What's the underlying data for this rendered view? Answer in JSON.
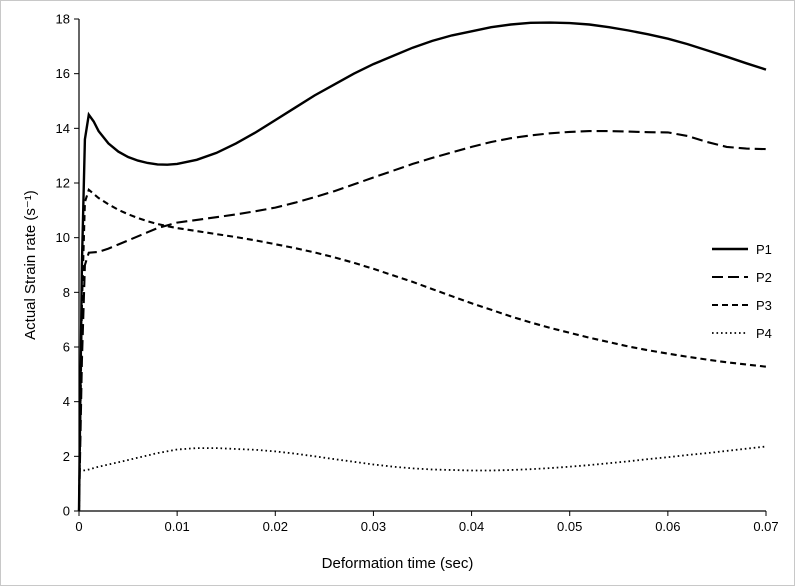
{
  "figure": {
    "background": "#ffffff",
    "border_color": "#c8c8c8"
  },
  "chart_data": {
    "type": "line",
    "title": "",
    "xlabel": "Deformation time (sec)",
    "ylabel": "Actual Strain rate (s⁻¹)",
    "xlim": [
      0,
      0.07
    ],
    "ylim": [
      0,
      18
    ],
    "grid": false,
    "legend_position": "middle-right",
    "axis_color": "#000000",
    "line_color": "#000000",
    "xtick_values": [
      0,
      0.01,
      0.02,
      0.03,
      0.04,
      0.05,
      0.06,
      0.07
    ],
    "xtick_labels": [
      "0",
      "0.01",
      "0.02",
      "0.03",
      "0.04",
      "0.05",
      "0.06",
      "0.07"
    ],
    "ytick_values": [
      0,
      2,
      4,
      6,
      8,
      10,
      12,
      14,
      16,
      18
    ],
    "ytick_labels": [
      "0",
      "2",
      "4",
      "6",
      "8",
      "10",
      "12",
      "14",
      "16",
      "18"
    ],
    "series": [
      {
        "name": "P1",
        "line_style": "solid",
        "x": [
          0,
          0.0003,
          0.0006,
          0.001,
          0.0015,
          0.002,
          0.003,
          0.004,
          0.005,
          0.006,
          0.007,
          0.008,
          0.009,
          0.01,
          0.012,
          0.014,
          0.016,
          0.018,
          0.02,
          0.022,
          0.024,
          0.026,
          0.028,
          0.03,
          0.032,
          0.034,
          0.036,
          0.038,
          0.04,
          0.042,
          0.044,
          0.046,
          0.048,
          0.05,
          0.052,
          0.054,
          0.056,
          0.058,
          0.06,
          0.062,
          0.064,
          0.066,
          0.068,
          0.07
        ],
        "y": [
          0,
          9.0,
          13.6,
          14.5,
          14.25,
          13.9,
          13.45,
          13.15,
          12.95,
          12.82,
          12.73,
          12.68,
          12.67,
          12.7,
          12.85,
          13.1,
          13.45,
          13.85,
          14.3,
          14.75,
          15.2,
          15.6,
          16.0,
          16.35,
          16.65,
          16.95,
          17.2,
          17.4,
          17.55,
          17.7,
          17.8,
          17.86,
          17.87,
          17.85,
          17.8,
          17.7,
          17.58,
          17.44,
          17.28,
          17.08,
          16.85,
          16.62,
          16.38,
          16.15
        ]
      },
      {
        "name": "P2",
        "line_style": "long-dash",
        "x": [
          0,
          0.0003,
          0.0006,
          0.001,
          0.002,
          0.003,
          0.004,
          0.005,
          0.006,
          0.007,
          0.008,
          0.009,
          0.01,
          0.012,
          0.014,
          0.016,
          0.018,
          0.02,
          0.022,
          0.024,
          0.026,
          0.028,
          0.03,
          0.032,
          0.034,
          0.036,
          0.038,
          0.04,
          0.042,
          0.044,
          0.046,
          0.048,
          0.05,
          0.052,
          0.054,
          0.056,
          0.058,
          0.06,
          0.062,
          0.064,
          0.066,
          0.068,
          0.07
        ],
        "y": [
          0,
          5.5,
          9.0,
          9.45,
          9.48,
          9.6,
          9.75,
          9.9,
          10.05,
          10.2,
          10.35,
          10.45,
          10.55,
          10.65,
          10.75,
          10.85,
          10.97,
          11.1,
          11.28,
          11.48,
          11.7,
          11.95,
          12.2,
          12.45,
          12.7,
          12.92,
          13.12,
          13.32,
          13.5,
          13.64,
          13.74,
          13.82,
          13.87,
          13.9,
          13.9,
          13.88,
          13.86,
          13.85,
          13.72,
          13.5,
          13.32,
          13.26,
          13.24
        ]
      },
      {
        "name": "P3",
        "line_style": "dash",
        "x": [
          0,
          0.0003,
          0.0006,
          0.001,
          0.002,
          0.003,
          0.004,
          0.005,
          0.006,
          0.007,
          0.008,
          0.009,
          0.01,
          0.012,
          0.014,
          0.016,
          0.018,
          0.02,
          0.022,
          0.024,
          0.026,
          0.028,
          0.03,
          0.032,
          0.034,
          0.036,
          0.038,
          0.04,
          0.042,
          0.044,
          0.046,
          0.048,
          0.05,
          0.052,
          0.054,
          0.056,
          0.058,
          0.06,
          0.062,
          0.064,
          0.066,
          0.068,
          0.07
        ],
        "y": [
          0,
          7.5,
          11.3,
          11.75,
          11.45,
          11.22,
          11.02,
          10.86,
          10.72,
          10.6,
          10.5,
          10.42,
          10.35,
          10.24,
          10.13,
          10.02,
          9.9,
          9.76,
          9.62,
          9.46,
          9.28,
          9.08,
          8.86,
          8.62,
          8.38,
          8.12,
          7.86,
          7.6,
          7.36,
          7.12,
          6.9,
          6.7,
          6.52,
          6.34,
          6.18,
          6.02,
          5.88,
          5.76,
          5.64,
          5.54,
          5.44,
          5.36,
          5.28
        ]
      },
      {
        "name": "P4",
        "line_style": "dot",
        "x": [
          0,
          0.001,
          0.002,
          0.004,
          0.006,
          0.008,
          0.01,
          0.012,
          0.014,
          0.016,
          0.018,
          0.02,
          0.022,
          0.024,
          0.026,
          0.028,
          0.03,
          0.032,
          0.034,
          0.036,
          0.038,
          0.04,
          0.042,
          0.044,
          0.046,
          0.048,
          0.05,
          0.052,
          0.054,
          0.056,
          0.058,
          0.06,
          0.062,
          0.064,
          0.066,
          0.068,
          0.07
        ],
        "y": [
          1.45,
          1.52,
          1.62,
          1.78,
          1.95,
          2.12,
          2.25,
          2.3,
          2.3,
          2.27,
          2.24,
          2.18,
          2.1,
          2.0,
          1.9,
          1.8,
          1.7,
          1.62,
          1.56,
          1.52,
          1.5,
          1.48,
          1.48,
          1.5,
          1.53,
          1.57,
          1.62,
          1.68,
          1.75,
          1.82,
          1.9,
          1.97,
          2.05,
          2.12,
          2.2,
          2.28,
          2.36
        ]
      }
    ]
  }
}
